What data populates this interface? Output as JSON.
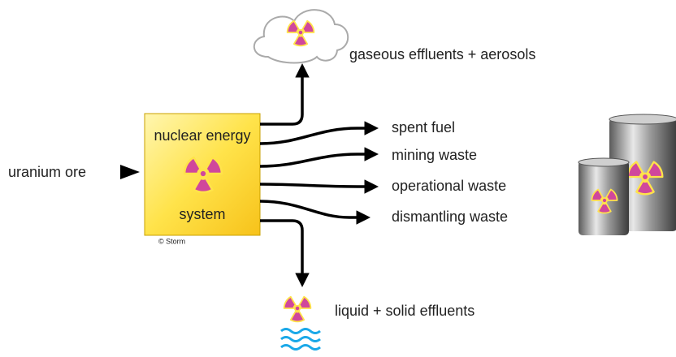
{
  "input": {
    "label": "uranium ore"
  },
  "system": {
    "label_top": "nuclear energy",
    "label_bottom": "system",
    "credit": "© Storm"
  },
  "outputs": [
    {
      "label": "gaseous effluents + aerosols"
    },
    {
      "label": "spent fuel"
    },
    {
      "label": "mining waste"
    },
    {
      "label": "operational waste"
    },
    {
      "label": "dismantling waste"
    },
    {
      "label": "liquid + solid effluents"
    }
  ]
}
